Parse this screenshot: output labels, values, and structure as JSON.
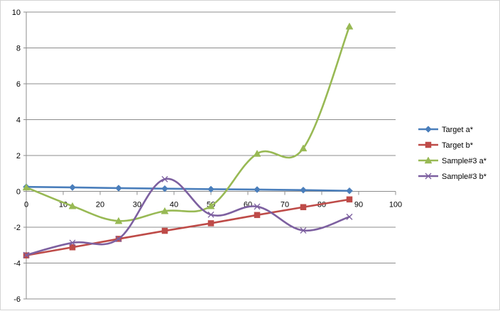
{
  "chart_data": {
    "type": "line",
    "title": "",
    "xlabel": "",
    "ylabel": "",
    "xlim": [
      0,
      100
    ],
    "ylim": [
      -6,
      10
    ],
    "x_ticks": [
      "0",
      "10",
      "20",
      "30",
      "40",
      "50",
      "60",
      "70",
      "80",
      "90",
      "100"
    ],
    "y_ticks": [
      "10",
      "8",
      "6",
      "4",
      "2",
      "0",
      "-2",
      "-4",
      "-6"
    ],
    "grid": "horizontal",
    "legend_position": "right",
    "series": [
      {
        "name": "Target a*",
        "color": "#4a7ebb",
        "marker": "diamond",
        "smooth": false,
        "x": [
          0,
          12.5,
          25,
          37.5,
          50,
          62.5,
          75,
          87.5
        ],
        "y": [
          0.25,
          0.22,
          0.18,
          0.15,
          0.12,
          0.1,
          0.07,
          0.03
        ]
      },
      {
        "name": "Target b*",
        "color": "#be4b48",
        "marker": "square",
        "smooth": false,
        "x": [
          0,
          12.5,
          25,
          37.5,
          50,
          62.5,
          75,
          87.5
        ],
        "y": [
          -3.57,
          -3.12,
          -2.65,
          -2.2,
          -1.78,
          -1.32,
          -0.88,
          -0.45
        ]
      },
      {
        "name": "Sample#3 a*",
        "color": "#98b954",
        "marker": "triangle",
        "smooth": true,
        "x": [
          0,
          12.5,
          25,
          37.5,
          50,
          62.5,
          75,
          87.5
        ],
        "y": [
          0.22,
          -0.82,
          -1.65,
          -1.1,
          -0.82,
          2.1,
          2.4,
          9.2
        ]
      },
      {
        "name": "Sample#3 b*",
        "color": "#7d60a0",
        "marker": "x",
        "smooth": true,
        "x": [
          0,
          12.5,
          25,
          37.5,
          50,
          62.5,
          75,
          87.5
        ],
        "y": [
          -3.55,
          -2.87,
          -2.65,
          0.68,
          -1.3,
          -0.85,
          -2.18,
          -1.42
        ]
      }
    ]
  }
}
